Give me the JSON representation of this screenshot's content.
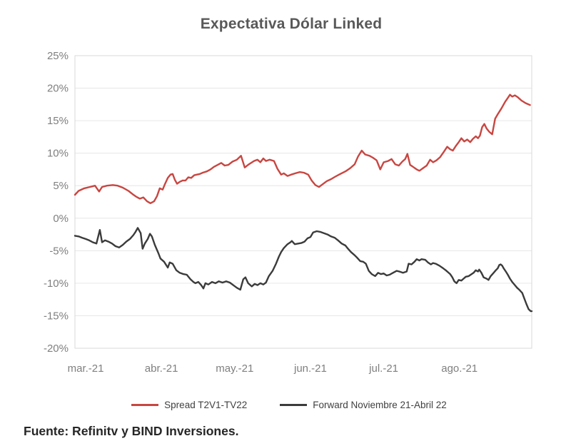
{
  "title": "Expectativa Dólar Linked",
  "footer": "Fuente: Refinitv y BIND Inversiones.",
  "colors": {
    "title_text": "#595959",
    "axis_labels": "#7f7f7f",
    "gridline": "#e6e6e6",
    "plot_border": "#d9d9d9",
    "series_red": "#c84641",
    "series_black": "#3b3b3b",
    "legend_text": "#404040",
    "footer_text": "#262626"
  },
  "legend": {
    "items": [
      {
        "label": "Spread T2V1-TV22",
        "color": "#c84641"
      },
      {
        "label": "Forward Noviembre 21-Abril 22",
        "color": "#3b3b3b"
      }
    ]
  },
  "chart_data": {
    "type": "line",
    "title": "Expectativa Dólar Linked",
    "xlabel": "",
    "ylabel": "",
    "ylim": [
      -20,
      25
    ],
    "grid": "horizontal",
    "legend_position": "bottom",
    "x_unit": "days since 2021-03-01 (axis spans late Feb 2021 to early Sep 2021)",
    "y_axis": {
      "min": -20,
      "max": 25,
      "step": 5,
      "tick_values": [
        25,
        20,
        15,
        10,
        5,
        0,
        -5,
        -10,
        -15,
        -20
      ],
      "tick_labels": [
        "25%",
        "20%",
        "15%",
        "10%",
        "5%",
        "0%",
        "-5%",
        "-10%",
        "-15%",
        "-20%"
      ]
    },
    "x_axis": {
      "day_min": 0,
      "day_max": 187,
      "ticks": [
        {
          "label": "mar.-21",
          "day": 4.4
        },
        {
          "label": "abr.-21",
          "day": 35.4
        },
        {
          "label": "may.-21",
          "day": 65.4
        },
        {
          "label": "jun.-21",
          "day": 96.4
        },
        {
          "label": "jul.-21",
          "day": 126.4
        },
        {
          "label": "ago.-21",
          "day": 157.4
        }
      ]
    },
    "series": [
      {
        "name": "Spread T2V1-TV22",
        "color": "#c84641",
        "points": [
          [
            0,
            3.6
          ],
          [
            1.5,
            4.2
          ],
          [
            3.8,
            4.6
          ],
          [
            6.1,
            4.8
          ],
          [
            8.2,
            5.0
          ],
          [
            9.9,
            4.1
          ],
          [
            11.1,
            4.8
          ],
          [
            13.1,
            5.0
          ],
          [
            15.5,
            5.1
          ],
          [
            17.5,
            5.0
          ],
          [
            19.6,
            4.7
          ],
          [
            21.9,
            4.2
          ],
          [
            23.6,
            3.7
          ],
          [
            25.1,
            3.3
          ],
          [
            26.6,
            3.0
          ],
          [
            28,
            3.2
          ],
          [
            29.5,
            2.6
          ],
          [
            30.9,
            2.3
          ],
          [
            32.4,
            2.6
          ],
          [
            33.6,
            3.4
          ],
          [
            34.7,
            4.6
          ],
          [
            35.9,
            4.4
          ],
          [
            36.8,
            5.2
          ],
          [
            38,
            6.2
          ],
          [
            39.1,
            6.7
          ],
          [
            40,
            6.8
          ],
          [
            40.9,
            5.9
          ],
          [
            41.8,
            5.3
          ],
          [
            42.9,
            5.6
          ],
          [
            44.1,
            5.8
          ],
          [
            45.3,
            5.8
          ],
          [
            46.4,
            6.3
          ],
          [
            47.6,
            6.2
          ],
          [
            48.8,
            6.6
          ],
          [
            49.9,
            6.7
          ],
          [
            51.1,
            6.8
          ],
          [
            52.3,
            7.0
          ],
          [
            54,
            7.2
          ],
          [
            55.5,
            7.5
          ],
          [
            56.9,
            7.9
          ],
          [
            58.4,
            8.2
          ],
          [
            59.9,
            8.5
          ],
          [
            61.3,
            8.1
          ],
          [
            62.8,
            8.2
          ],
          [
            64.5,
            8.7
          ],
          [
            66.3,
            9.0
          ],
          [
            68,
            9.6
          ],
          [
            69.5,
            7.8
          ],
          [
            71.2,
            8.3
          ],
          [
            73.3,
            8.8
          ],
          [
            74.7,
            9.0
          ],
          [
            75.9,
            8.6
          ],
          [
            77.1,
            9.2
          ],
          [
            78.2,
            8.8
          ],
          [
            79.7,
            9.0
          ],
          [
            81.5,
            8.8
          ],
          [
            82.9,
            7.6
          ],
          [
            84.4,
            6.7
          ],
          [
            85.5,
            6.9
          ],
          [
            87,
            6.5
          ],
          [
            88.5,
            6.7
          ],
          [
            90.2,
            6.9
          ],
          [
            92,
            7.1
          ],
          [
            93.7,
            7.0
          ],
          [
            95.5,
            6.7
          ],
          [
            96.9,
            5.8
          ],
          [
            98.4,
            5.1
          ],
          [
            99.9,
            4.8
          ],
          [
            101.3,
            5.2
          ],
          [
            103.1,
            5.7
          ],
          [
            104.8,
            6.0
          ],
          [
            106.6,
            6.4
          ],
          [
            108.6,
            6.8
          ],
          [
            110.7,
            7.2
          ],
          [
            112.7,
            7.7
          ],
          [
            114.5,
            8.3
          ],
          [
            115.9,
            9.5
          ],
          [
            117.4,
            10.4
          ],
          [
            118.8,
            9.8
          ],
          [
            120.6,
            9.6
          ],
          [
            122,
            9.3
          ],
          [
            123.5,
            8.9
          ],
          [
            125,
            7.5
          ],
          [
            126.4,
            8.6
          ],
          [
            128.2,
            8.8
          ],
          [
            129.6,
            9.1
          ],
          [
            131.1,
            8.3
          ],
          [
            132.6,
            8.1
          ],
          [
            134,
            8.7
          ],
          [
            135.2,
            9.1
          ],
          [
            136.1,
            9.9
          ],
          [
            137.2,
            8.2
          ],
          [
            138.4,
            7.9
          ],
          [
            139.9,
            7.5
          ],
          [
            141,
            7.3
          ],
          [
            142.5,
            7.7
          ],
          [
            144,
            8.1
          ],
          [
            145.4,
            9.0
          ],
          [
            146.6,
            8.6
          ],
          [
            148,
            8.9
          ],
          [
            149.5,
            9.4
          ],
          [
            151,
            10.2
          ],
          [
            152.4,
            11.0
          ],
          [
            153.6,
            10.6
          ],
          [
            154.7,
            10.4
          ],
          [
            155.9,
            11.1
          ],
          [
            157.1,
            11.7
          ],
          [
            158.2,
            12.3
          ],
          [
            159.4,
            11.8
          ],
          [
            160.6,
            12.1
          ],
          [
            161.8,
            11.7
          ],
          [
            162.9,
            12.2
          ],
          [
            164.1,
            12.6
          ],
          [
            165,
            12.3
          ],
          [
            165.8,
            12.7
          ],
          [
            166.7,
            14.0
          ],
          [
            167.6,
            14.5
          ],
          [
            168.5,
            13.8
          ],
          [
            169.6,
            13.3
          ],
          [
            170.8,
            12.9
          ],
          [
            172,
            15.3
          ],
          [
            173.1,
            16.0
          ],
          [
            174.6,
            16.9
          ],
          [
            176.1,
            17.9
          ],
          [
            177.2,
            18.5
          ],
          [
            178.1,
            19.0
          ],
          [
            179,
            18.7
          ],
          [
            180.1,
            18.9
          ],
          [
            181.3,
            18.6
          ],
          [
            182.8,
            18.1
          ],
          [
            184.5,
            17.7
          ],
          [
            186.3,
            17.4
          ]
        ]
      },
      {
        "name": "Forward Noviembre 21-Abril 22",
        "color": "#3b3b3b",
        "points": [
          [
            0,
            -2.7
          ],
          [
            1.5,
            -2.8
          ],
          [
            2.9,
            -3.0
          ],
          [
            4.4,
            -3.2
          ],
          [
            5.8,
            -3.4
          ],
          [
            7.3,
            -3.7
          ],
          [
            8.8,
            -3.9
          ],
          [
            10.2,
            -1.8
          ],
          [
            11.1,
            -3.7
          ],
          [
            12.3,
            -3.4
          ],
          [
            13.7,
            -3.6
          ],
          [
            15.2,
            -3.9
          ],
          [
            16.6,
            -4.3
          ],
          [
            18.1,
            -4.5
          ],
          [
            19.6,
            -4.1
          ],
          [
            21,
            -3.6
          ],
          [
            22.5,
            -3.2
          ],
          [
            23.9,
            -2.6
          ],
          [
            24.8,
            -2.1
          ],
          [
            25.7,
            -1.5
          ],
          [
            26.9,
            -2.3
          ],
          [
            27.7,
            -4.7
          ],
          [
            28.6,
            -3.9
          ],
          [
            29.8,
            -3.2
          ],
          [
            30.7,
            -2.4
          ],
          [
            31.5,
            -2.8
          ],
          [
            32.7,
            -4.1
          ],
          [
            34.2,
            -5.4
          ],
          [
            35,
            -6.2
          ],
          [
            36.5,
            -6.7
          ],
          [
            38,
            -7.6
          ],
          [
            38.8,
            -6.8
          ],
          [
            40,
            -7.0
          ],
          [
            41.5,
            -8.0
          ],
          [
            42.9,
            -8.4
          ],
          [
            44.4,
            -8.6
          ],
          [
            45.8,
            -8.7
          ],
          [
            47.3,
            -9.4
          ],
          [
            48.5,
            -9.8
          ],
          [
            49.3,
            -10.0
          ],
          [
            50.5,
            -9.8
          ],
          [
            51.7,
            -10.3
          ],
          [
            52.6,
            -10.8
          ],
          [
            53.4,
            -10.0
          ],
          [
            54.6,
            -10.2
          ],
          [
            56.1,
            -9.8
          ],
          [
            57.5,
            -10.0
          ],
          [
            58.9,
            -9.7
          ],
          [
            60.4,
            -9.9
          ],
          [
            61.9,
            -9.7
          ],
          [
            63.4,
            -9.9
          ],
          [
            64.8,
            -10.3
          ],
          [
            66.3,
            -10.7
          ],
          [
            67.7,
            -11.0
          ],
          [
            68.9,
            -9.4
          ],
          [
            69.8,
            -9.1
          ],
          [
            70.9,
            -10.0
          ],
          [
            72.4,
            -10.5
          ],
          [
            73.6,
            -10.1
          ],
          [
            74.7,
            -10.3
          ],
          [
            75.9,
            -10.0
          ],
          [
            77.1,
            -10.2
          ],
          [
            78.2,
            -9.9
          ],
          [
            79.4,
            -8.9
          ],
          [
            80.9,
            -8.1
          ],
          [
            82.3,
            -7.0
          ],
          [
            83.5,
            -5.9
          ],
          [
            84.4,
            -5.2
          ],
          [
            85.5,
            -4.6
          ],
          [
            87,
            -4.0
          ],
          [
            88.2,
            -3.7
          ],
          [
            88.8,
            -3.5
          ],
          [
            90,
            -4.0
          ],
          [
            91.4,
            -3.9
          ],
          [
            92.8,
            -3.8
          ],
          [
            94,
            -3.6
          ],
          [
            95.2,
            -3.1
          ],
          [
            96.4,
            -2.9
          ],
          [
            97.5,
            -2.2
          ],
          [
            99,
            -2.0
          ],
          [
            100.4,
            -2.1
          ],
          [
            101.9,
            -2.3
          ],
          [
            103.4,
            -2.5
          ],
          [
            104.8,
            -2.8
          ],
          [
            106.3,
            -3.0
          ],
          [
            107.7,
            -3.4
          ],
          [
            109.2,
            -3.9
          ],
          [
            110.7,
            -4.2
          ],
          [
            111.8,
            -4.7
          ],
          [
            113,
            -5.2
          ],
          [
            114.5,
            -5.7
          ],
          [
            115.6,
            -6.1
          ],
          [
            116.8,
            -6.6
          ],
          [
            118,
            -6.7
          ],
          [
            119.1,
            -7.0
          ],
          [
            120.3,
            -8.1
          ],
          [
            121.5,
            -8.6
          ],
          [
            122.9,
            -8.9
          ],
          [
            124.1,
            -8.4
          ],
          [
            125.3,
            -8.6
          ],
          [
            126.4,
            -8.5
          ],
          [
            127.6,
            -8.8
          ],
          [
            128.8,
            -8.7
          ],
          [
            130.2,
            -8.4
          ],
          [
            131.7,
            -8.1
          ],
          [
            132.8,
            -8.2
          ],
          [
            134.3,
            -8.4
          ],
          [
            135.8,
            -8.2
          ],
          [
            136.6,
            -7.0
          ],
          [
            137.8,
            -7.1
          ],
          [
            139,
            -6.7
          ],
          [
            139.9,
            -6.3
          ],
          [
            141,
            -6.5
          ],
          [
            141.9,
            -6.3
          ],
          [
            143.4,
            -6.4
          ],
          [
            144.5,
            -6.8
          ],
          [
            145.7,
            -7.1
          ],
          [
            146.6,
            -6.9
          ],
          [
            147.7,
            -7.0
          ],
          [
            149.2,
            -7.3
          ],
          [
            150.7,
            -7.7
          ],
          [
            151.8,
            -8.0
          ],
          [
            152.7,
            -8.3
          ],
          [
            153.6,
            -8.6
          ],
          [
            154.5,
            -9.1
          ],
          [
            155.3,
            -9.7
          ],
          [
            156.2,
            -10.0
          ],
          [
            157.1,
            -9.5
          ],
          [
            158.2,
            -9.6
          ],
          [
            159.1,
            -9.3
          ],
          [
            160,
            -9.0
          ],
          [
            161.2,
            -8.9
          ],
          [
            163.2,
            -8.4
          ],
          [
            164.1,
            -8.0
          ],
          [
            165,
            -8.2
          ],
          [
            165.5,
            -7.9
          ],
          [
            166.4,
            -8.4
          ],
          [
            167.3,
            -9.1
          ],
          [
            168.5,
            -9.3
          ],
          [
            169.3,
            -9.5
          ],
          [
            170.2,
            -8.9
          ],
          [
            171.4,
            -8.4
          ],
          [
            172.3,
            -8.0
          ],
          [
            173.1,
            -7.7
          ],
          [
            173.7,
            -7.2
          ],
          [
            174.3,
            -7.1
          ],
          [
            174.9,
            -7.3
          ],
          [
            175.5,
            -7.7
          ],
          [
            176.4,
            -8.2
          ],
          [
            177.2,
            -8.7
          ],
          [
            178.1,
            -9.3
          ],
          [
            179,
            -9.8
          ],
          [
            180.1,
            -10.3
          ],
          [
            181,
            -10.7
          ],
          [
            181.9,
            -11.0
          ],
          [
            183.1,
            -11.5
          ],
          [
            183.9,
            -12.3
          ],
          [
            184.8,
            -13.2
          ],
          [
            185.7,
            -14.0
          ],
          [
            186.6,
            -14.3
          ],
          [
            187,
            -14.3
          ]
        ]
      }
    ]
  }
}
